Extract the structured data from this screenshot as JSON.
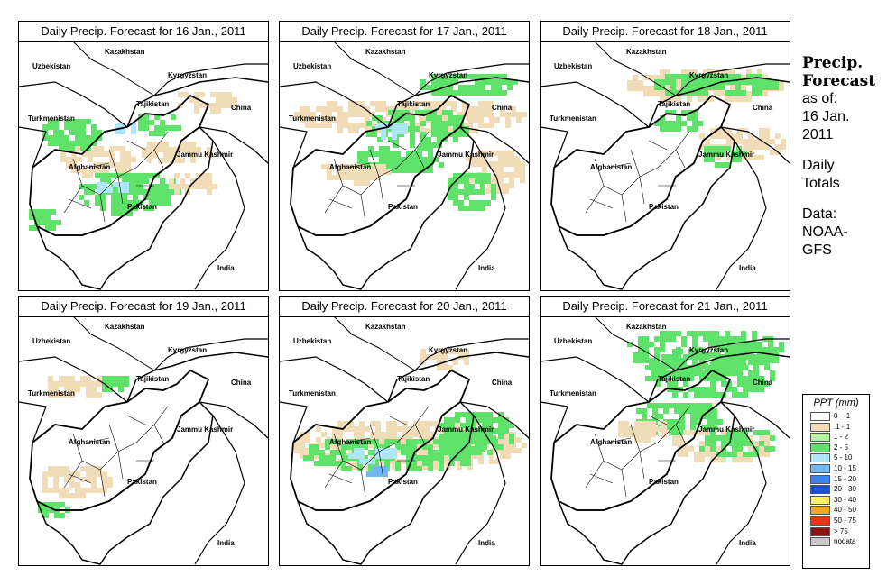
{
  "panels": [
    {
      "title": "Daily Precip. Forecast for  16 Jan., 2011",
      "pattern": "a"
    },
    {
      "title": "Daily Precip. Forecast for  17 Jan., 2011",
      "pattern": "b"
    },
    {
      "title": "Daily Precip. Forecast for  18 Jan., 2011",
      "pattern": "c"
    },
    {
      "title": "Daily Precip. Forecast for  19 Jan., 2011",
      "pattern": "d"
    },
    {
      "title": "Daily Precip. Forecast for  20 Jan., 2011",
      "pattern": "e"
    },
    {
      "title": "Daily Precip. Forecast for  21 Jan., 2011",
      "pattern": "f"
    }
  ],
  "map_labels": {
    "kazakhstan": "Kazakhstan",
    "uzbekistan": "Uzbekistan",
    "kyrgyzstan": "Kyrgyzstan",
    "tajikistan": "Tajikistan",
    "china": "China",
    "turkmenistan": "Turkmenistan",
    "afghanistan": "Afghanistan",
    "jammu_kashmir": "Jammu Kashmir",
    "pakistan": "Pakistan",
    "india": "India"
  },
  "side": {
    "heading_line1": "Precip.",
    "heading_line2": "Forecast",
    "as_of_line1": "as of:",
    "as_of_line2": "16 Jan.",
    "as_of_line3": "2011",
    "totals_line1": "Daily",
    "totals_line2": "Totals",
    "data_line1": "Data:",
    "data_line2": "NOAA-",
    "data_line3": "GFS"
  },
  "legend": {
    "title": "PPT (mm)",
    "items": [
      {
        "label": "0 - .1",
        "color": "#ffffff"
      },
      {
        "label": ".1 - 1",
        "color": "#f1dcb8"
      },
      {
        "label": "1 - 2",
        "color": "#b9f2a3"
      },
      {
        "label": "2 - 5",
        "color": "#5fe26a"
      },
      {
        "label": "5 - 10",
        "color": "#aee6f8"
      },
      {
        "label": "10 - 15",
        "color": "#70b8f2"
      },
      {
        "label": "15 - 20",
        "color": "#3b82ee"
      },
      {
        "label": "20 - 30",
        "color": "#1451d6"
      },
      {
        "label": "30 - 40",
        "color": "#fff066"
      },
      {
        "label": "40 - 50",
        "color": "#f6a71b"
      },
      {
        "label": "50 - 75",
        "color": "#e3361a"
      },
      {
        "label": "> 75",
        "color": "#8c1414"
      },
      {
        "label": "nodata",
        "color": "#c8c8c8"
      }
    ]
  }
}
